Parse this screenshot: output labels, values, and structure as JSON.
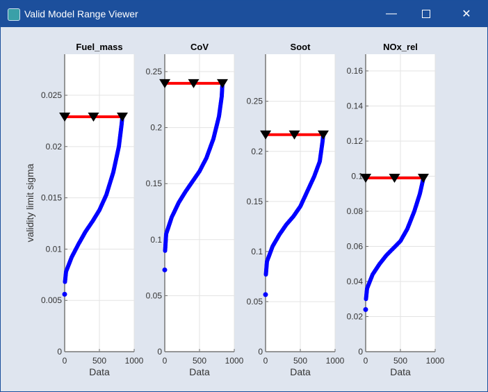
{
  "window": {
    "title": "Valid Model Range Viewer",
    "minimize_icon": "minimize-icon",
    "maximize_icon": "maximize-icon",
    "close_icon": "close-icon"
  },
  "colors": {
    "curve": "#0000ff",
    "limit_line": "#ff0000",
    "marker": "#000000",
    "titlebar": "#1c4f9c"
  },
  "chart_data": [
    {
      "type": "scatter",
      "title": "Fuel_mass",
      "xlabel": "Data",
      "ylabel": "validity limit sigma",
      "xlim": [
        0,
        1000
      ],
      "ylim": [
        0,
        0.029
      ],
      "xticks": [
        "0",
        "500",
        "1000"
      ],
      "xtick_values": [
        0,
        500,
        1000
      ],
      "yticks": [
        "0",
        "0.005",
        "0.01",
        "0.015",
        "0.02",
        "0.025"
      ],
      "ytick_values": [
        0,
        0.005,
        0.01,
        0.015,
        0.02,
        0.025
      ],
      "grid": true,
      "limit": 0.0229,
      "limit_markers_x": [
        1,
        415,
        830
      ],
      "points": [
        [
          0,
          0.0056
        ],
        [
          5,
          0.0068
        ],
        [
          20,
          0.0078
        ],
        [
          100,
          0.0092
        ],
        [
          200,
          0.0105
        ],
        [
          300,
          0.0117
        ],
        [
          400,
          0.0127
        ],
        [
          500,
          0.0138
        ],
        [
          600,
          0.0153
        ],
        [
          700,
          0.0175
        ],
        [
          780,
          0.02
        ],
        [
          820,
          0.0222
        ],
        [
          830,
          0.0229
        ]
      ]
    },
    {
      "type": "scatter",
      "title": "CoV",
      "xlabel": "Data",
      "ylabel": "",
      "xlim": [
        0,
        1000
      ],
      "ylim": [
        0,
        0.2655
      ],
      "xticks": [
        "0",
        "500",
        "1000"
      ],
      "xtick_values": [
        0,
        500,
        1000
      ],
      "yticks": [
        "0",
        "0.05",
        "0.1",
        "0.15",
        "0.2",
        "0.25"
      ],
      "ytick_values": [
        0,
        0.05,
        0.1,
        0.15,
        0.2,
        0.25
      ],
      "grid": true,
      "limit": 0.2395,
      "limit_markers_x": [
        1,
        415,
        830
      ],
      "points": [
        [
          0,
          0.073
        ],
        [
          5,
          0.09
        ],
        [
          20,
          0.105
        ],
        [
          100,
          0.12
        ],
        [
          200,
          0.133
        ],
        [
          300,
          0.143
        ],
        [
          400,
          0.152
        ],
        [
          500,
          0.161
        ],
        [
          600,
          0.173
        ],
        [
          700,
          0.19
        ],
        [
          780,
          0.21
        ],
        [
          820,
          0.228
        ],
        [
          830,
          0.2395
        ]
      ]
    },
    {
      "type": "scatter",
      "title": "Soot",
      "xlabel": "Data",
      "ylabel": "",
      "xlim": [
        0,
        1000
      ],
      "ylim": [
        0,
        0.297
      ],
      "xticks": [
        "0",
        "500",
        "1000"
      ],
      "xtick_values": [
        0,
        500,
        1000
      ],
      "yticks": [
        "0",
        "0.05",
        "0.1",
        "0.15",
        "0.2",
        "0.25"
      ],
      "ytick_values": [
        0,
        0.05,
        0.1,
        0.15,
        0.2,
        0.25
      ],
      "grid": true,
      "limit": 0.2167,
      "limit_markers_x": [
        1,
        415,
        830
      ],
      "points": [
        [
          0,
          0.057
        ],
        [
          5,
          0.077
        ],
        [
          20,
          0.09
        ],
        [
          100,
          0.105
        ],
        [
          200,
          0.117
        ],
        [
          300,
          0.127
        ],
        [
          400,
          0.135
        ],
        [
          500,
          0.145
        ],
        [
          600,
          0.16
        ],
        [
          700,
          0.175
        ],
        [
          780,
          0.19
        ],
        [
          820,
          0.21
        ],
        [
          830,
          0.2167
        ]
      ]
    },
    {
      "type": "scatter",
      "title": "NOx_rel",
      "xlabel": "Data",
      "ylabel": "",
      "xlim": [
        0,
        1000
      ],
      "ylim": [
        0,
        0.1695
      ],
      "xticks": [
        "0",
        "500",
        "1000"
      ],
      "xtick_values": [
        0,
        500,
        1000
      ],
      "yticks": [
        "0",
        "0.02",
        "0.04",
        "0.06",
        "0.08",
        "0.1",
        "0.12",
        "0.14",
        "0.16"
      ],
      "ytick_values": [
        0,
        0.02,
        0.04,
        0.06,
        0.08,
        0.1,
        0.12,
        0.14,
        0.16
      ],
      "grid": true,
      "limit": 0.099,
      "limit_markers_x": [
        1,
        415,
        830
      ],
      "points": [
        [
          0,
          0.024
        ],
        [
          5,
          0.03
        ],
        [
          20,
          0.036
        ],
        [
          100,
          0.044
        ],
        [
          200,
          0.05
        ],
        [
          300,
          0.055
        ],
        [
          400,
          0.059
        ],
        [
          500,
          0.063
        ],
        [
          600,
          0.07
        ],
        [
          700,
          0.08
        ],
        [
          780,
          0.09
        ],
        [
          820,
          0.097
        ],
        [
          830,
          0.099
        ]
      ]
    }
  ]
}
